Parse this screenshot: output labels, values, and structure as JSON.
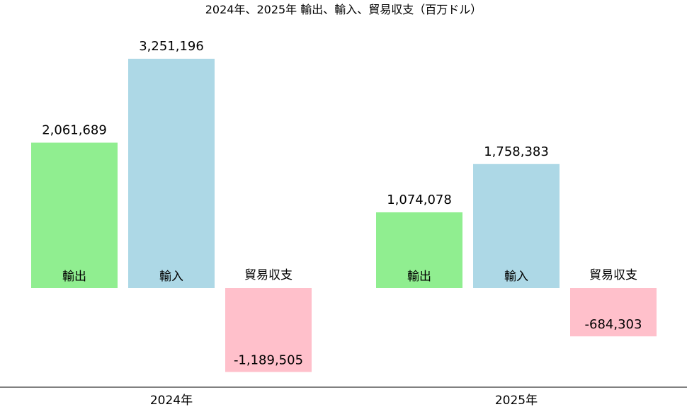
{
  "chart_data": {
    "type": "bar",
    "title": "2024年、2025年 輸出、輸入、貿易収支（百万ドル）",
    "categories": [
      "2024年",
      "2025年"
    ],
    "series": [
      {
        "name": "輸出",
        "values": [
          2061689,
          1074078
        ],
        "value_labels": [
          "2,061,689",
          "1,074,078"
        ],
        "color": "#90ee90"
      },
      {
        "name": "輸入",
        "values": [
          3251196,
          1758383
        ],
        "value_labels": [
          "3,251,196",
          "1,758,383"
        ],
        "color": "#add8e6"
      },
      {
        "name": "貿易収支",
        "values": [
          -1189505,
          -684303
        ],
        "value_labels": [
          "-1,189,505",
          "-684,303"
        ],
        "color": "#ffc0cb"
      }
    ],
    "xlabel": "",
    "ylabel": "",
    "y_axis_visible": false,
    "grid": false,
    "legend": "none"
  }
}
